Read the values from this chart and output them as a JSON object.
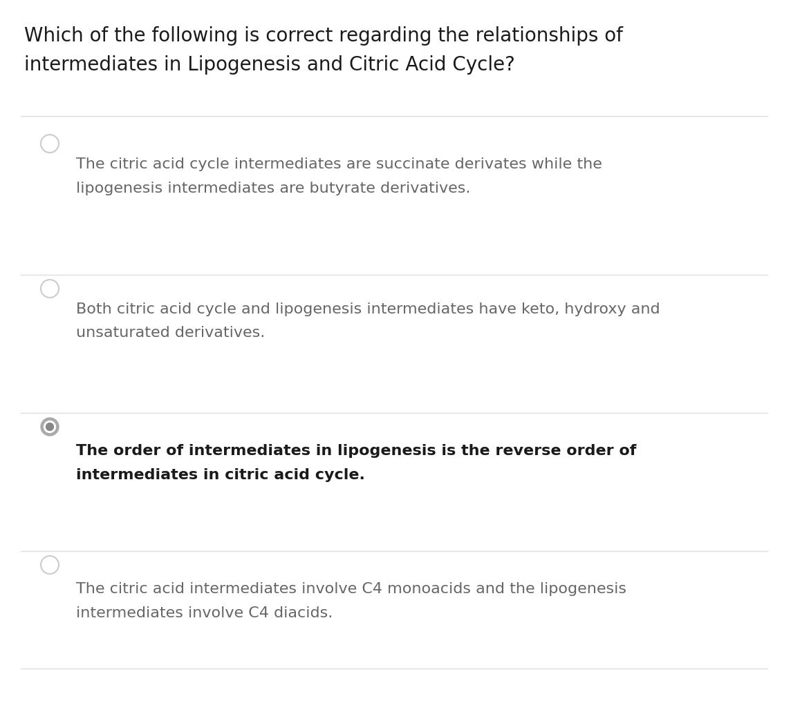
{
  "background_color": "#ffffff",
  "title_line1": "Which of the following is correct regarding the relationships of",
  "title_line2": "intermediates in Lipogenesis and Citric Acid Cycle?",
  "title_fontsize": 20,
  "title_color": "#1a1a1a",
  "options": [
    {
      "text_line1": "The citric acid cycle intermediates are succinate derivates while the",
      "text_line2": "lipogenesis intermediates are butyrate derivatives.",
      "selected": false,
      "bold": false
    },
    {
      "text_line1": "Both citric acid cycle and lipogenesis intermediates have keto, hydroxy and",
      "text_line2": "unsaturated derivatives.",
      "selected": false,
      "bold": false
    },
    {
      "text_line1": "The order of intermediates in lipogenesis is the reverse order of",
      "text_line2": "intermediates in citric acid cycle.",
      "selected": true,
      "bold": true
    },
    {
      "text_line1": "The citric acid intermediates involve C4 monoacids and the lipogenesis",
      "text_line2": "intermediates involve C4 diacids.",
      "selected": false,
      "bold": false
    }
  ],
  "separator_color": "#dddddd",
  "radio_color_unselected_edge": "#cccccc",
  "radio_color_selected_outer": "#aaaaaa",
  "radio_color_selected_inner": "#888888",
  "text_color_normal": "#666666",
  "text_color_bold": "#1a1a1a",
  "text_fontsize": 16
}
